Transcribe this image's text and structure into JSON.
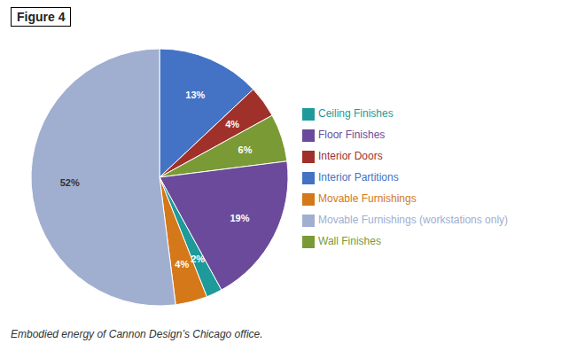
{
  "chart_data": {
    "type": "pie",
    "title": "Figure 4",
    "annotations": [
      "Embodied energy of Cannon Design’s Chicago office."
    ],
    "categories": [
      "Interior Partitions",
      "Interior Doors",
      "Wall Finishes",
      "Floor Finishes",
      "Ceiling Finishes",
      "Movable Furnishings",
      "Movable Furnishings (workstations only)"
    ],
    "values": [
      13,
      4,
      6,
      19,
      2,
      4,
      52
    ],
    "value_labels": [
      "13%",
      "4%",
      "6%",
      "19%",
      "2%",
      "4%",
      "52%"
    ],
    "colors": [
      "#4472C4",
      "#A0302A",
      "#7A9A35",
      "#6B4A9B",
      "#1E9A9A",
      "#D4781A",
      "#A0AECF"
    ],
    "data_labels": true,
    "legend": "right"
  }
}
